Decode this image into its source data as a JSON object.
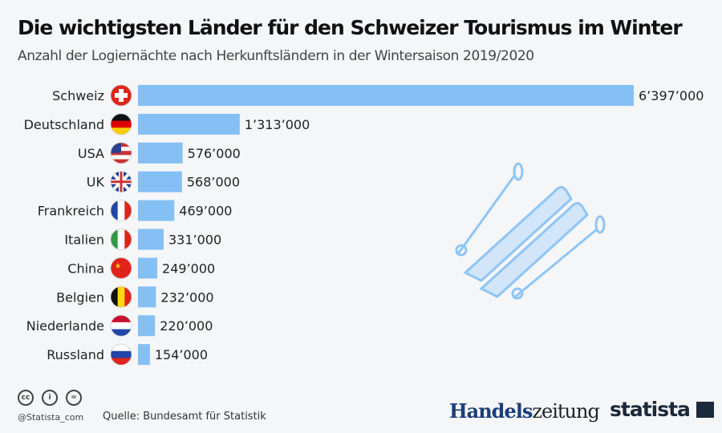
{
  "chart_data": {
    "type": "bar",
    "orientation": "horizontal",
    "title": "Die wichtigsten Länder für den Schweizer Tourismus im Winter",
    "subtitle": "Anzahl der Logiernächte nach Herkunftsländern in der Wintersaison 2019/2020",
    "categories": [
      "Schweiz",
      "Deutschland",
      "USA",
      "UK",
      "Frankreich",
      "Italien",
      "China",
      "Belgien",
      "Niederlande",
      "Russland"
    ],
    "values": [
      6397000,
      1313000,
      576000,
      568000,
      469000,
      331000,
      249000,
      232000,
      220000,
      154000
    ],
    "data_labels": [
      "6’397’000",
      "1’313’000",
      "576’000",
      "568’000",
      "469’000",
      "331’000",
      "249’000",
      "232’000",
      "220’000",
      "154’000"
    ],
    "flags": [
      "flag-switzerland",
      "flag-germany",
      "flag-usa",
      "flag-uk",
      "flag-france",
      "flag-italy",
      "flag-china",
      "flag-belgium",
      "flag-netherlands",
      "flag-russia"
    ],
    "bar_color": "#85c0f5",
    "grid": false
  },
  "footer": {
    "handle": "@Statista_com",
    "source": "Quelle: Bundesamt für Statistik",
    "logo_hz_a": "Handels",
    "logo_hz_b": "zeitung",
    "logo_statista": "statista"
  }
}
